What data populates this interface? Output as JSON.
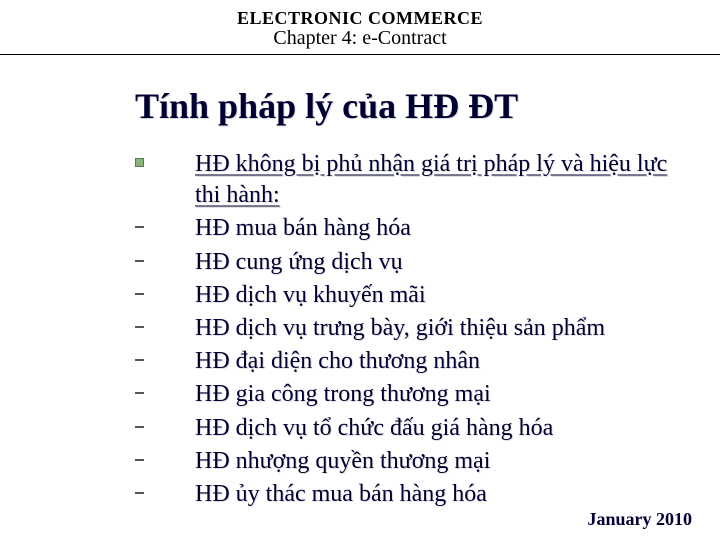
{
  "header": {
    "course_title": "ELECTRONIC COMMERCE",
    "chapter_title": "Chapter 4: e-Contract"
  },
  "main_title": "Tính pháp lý của HĐ ĐT",
  "colors": {
    "text_primary": "#000033",
    "bullet_fill": "#89b37a",
    "bullet_border": "#5a7a50",
    "divider": "#000000",
    "background": "#ffffff"
  },
  "typography": {
    "course_title_size": 18,
    "chapter_title_size": 20,
    "main_title_size": 36,
    "item_text_size": 24,
    "footer_size": 18,
    "font_family": "Times New Roman"
  },
  "items": [
    {
      "bullet": "square",
      "text": "HĐ không bị phủ nhận giá trị pháp lý và hiệu lực thi hành:",
      "underline": true
    },
    {
      "bullet": "dash",
      "text": "HĐ mua bán hàng hóa",
      "underline": false
    },
    {
      "bullet": "dash",
      "text": "HĐ cung ứng dịch vụ",
      "underline": false
    },
    {
      "bullet": "dash",
      "text": "HĐ dịch vụ khuyến mãi",
      "underline": false
    },
    {
      "bullet": "dash",
      "text": "HĐ dịch vụ trưng bày, giới thiệu sản phẩm",
      "underline": false
    },
    {
      "bullet": "dash",
      "text": "HĐ đại diện cho thương nhân",
      "underline": false
    },
    {
      "bullet": "dash",
      "text": "HĐ gia công trong thương mại",
      "underline": false
    },
    {
      "bullet": "dash",
      "text": "HĐ dịch vụ tổ chức đấu giá hàng hóa",
      "underline": false
    },
    {
      "bullet": "dash",
      "text": "HĐ nhượng quyền thương mại",
      "underline": false
    },
    {
      "bullet": "dash",
      "text": "HĐ ủy thác mua bán hàng hóa",
      "underline": false
    }
  ],
  "footer": {
    "date": "January 2010"
  }
}
